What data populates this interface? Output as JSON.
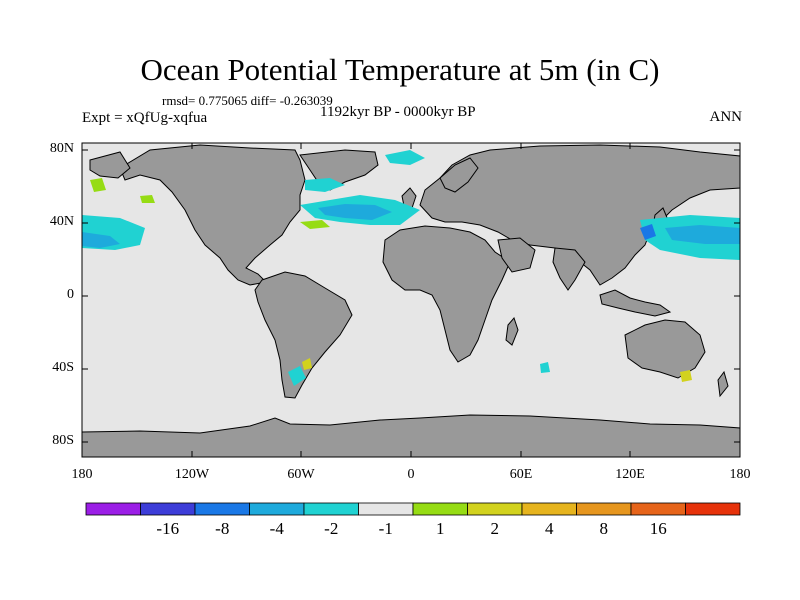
{
  "title": "Ocean Potential Temperature at 5m (in C)",
  "stats": "rmsd= 0.775065 diff= -0.263039",
  "experiment": "Expt = xQfUg-xqfua",
  "period": "1192kyr BP - 0000kyr BP",
  "season": "ANN",
  "lat_ticks": [
    "80N",
    "40N",
    "0",
    "40S",
    "80S"
  ],
  "lon_ticks": [
    "180",
    "120W",
    "60W",
    "0",
    "60E",
    "120E",
    "180"
  ],
  "colorbar": {
    "colors": [
      "#9b1ee6",
      "#3d3dd8",
      "#1a78e6",
      "#1eaadc",
      "#20d2d2",
      "#e6e6e6",
      "#96dc14",
      "#d2d21e",
      "#e6b41e",
      "#e6961e",
      "#e6641a",
      "#e6320a"
    ],
    "labels": [
      "-16",
      "-8",
      "-4",
      "-2",
      "-1",
      "1",
      "2",
      "4",
      "8",
      "16"
    ]
  },
  "legend_colors": {
    "ocean": "#e6e6e6",
    "land": "#999999",
    "coast": "#000000"
  }
}
